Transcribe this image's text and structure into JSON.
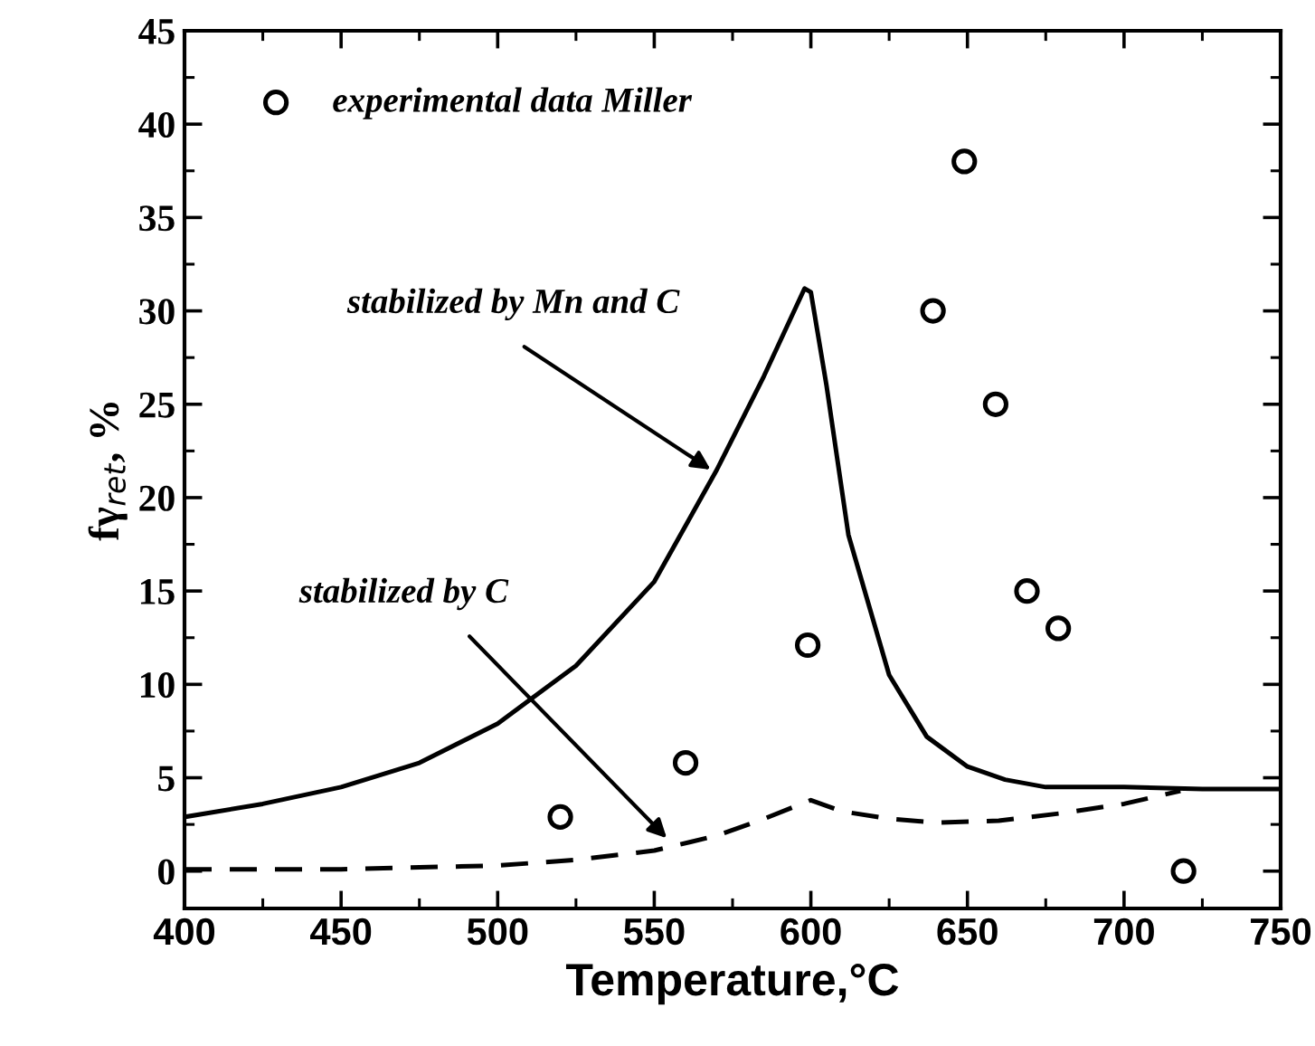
{
  "chart_data": {
    "type": "line",
    "xlabel": "Temperature,°C",
    "ylabel": "fγ$_{ret}$, %",
    "xlim": [
      400,
      750
    ],
    "ylim": [
      -2,
      45
    ],
    "xticks": [
      400,
      450,
      500,
      550,
      600,
      650,
      700,
      750
    ],
    "yticks": [
      0,
      5,
      10,
      15,
      20,
      25,
      30,
      35,
      40,
      45
    ],
    "legend": "top left",
    "series": [
      {
        "color": "#000000",
        "line_style": "solid",
        "x": [
          400,
          425,
          450,
          475,
          500,
          525,
          550,
          570,
          585,
          598,
          600,
          605,
          612,
          625,
          637,
          650,
          662,
          675,
          700,
          725,
          750
        ],
        "values": [
          2.9,
          3.6,
          4.5,
          5.8,
          7.9,
          11,
          15.5,
          21.5,
          26.5,
          31.2,
          31,
          26,
          18,
          10.5,
          7.2,
          5.6,
          4.9,
          4.5,
          4.5,
          4.4,
          4.4
        ]
      },
      {
        "color": "#000000",
        "line_style": "dashed",
        "x": [
          400,
          450,
          500,
          525,
          550,
          570,
          585,
          600,
          610,
          625,
          640,
          660,
          680,
          700,
          718
        ],
        "values": [
          0.1,
          0.1,
          0.3,
          0.6,
          1.1,
          1.9,
          2.8,
          3.8,
          3.2,
          2.8,
          2.6,
          2.7,
          3.1,
          3.6,
          4.3
        ]
      },
      {
        "type": "scatter",
        "name": "experimental data Miller",
        "color": "#000000",
        "marker": "circle",
        "x": [
          520,
          560,
          599,
          639,
          649,
          659,
          669,
          679,
          719
        ],
        "values": [
          2.9,
          5.8,
          12.1,
          30,
          38,
          25,
          15,
          13,
          0
        ]
      }
    ],
    "annotations": [
      "stabilized by Mn and C",
      "stabilized by C"
    ]
  }
}
